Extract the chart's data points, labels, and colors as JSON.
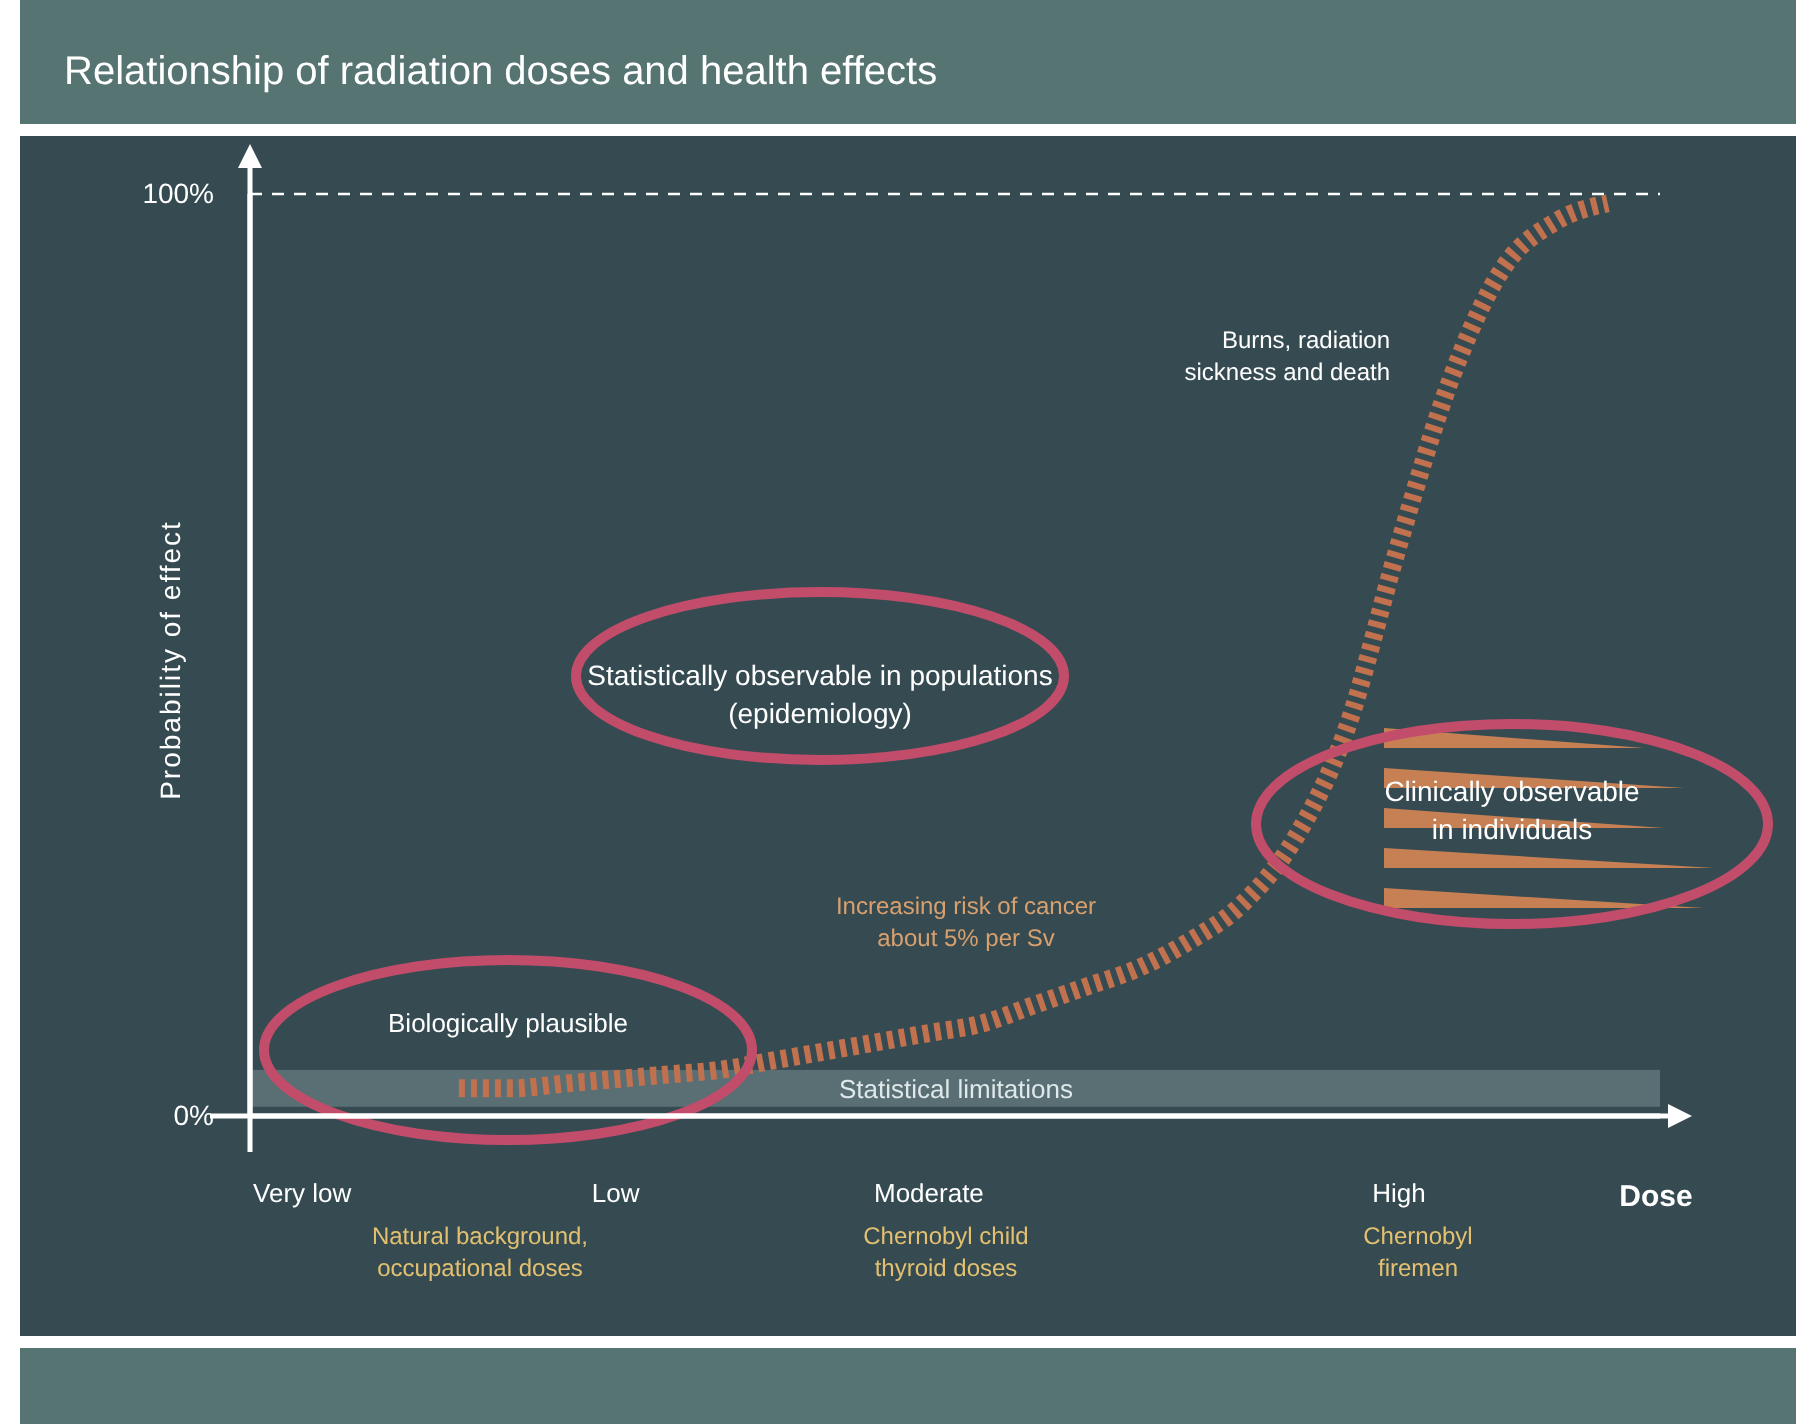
{
  "chart_data": {
    "type": "line",
    "title": "Relationship of radiation doses and health effects",
    "xlabel": "Dose",
    "ylabel": "Probability of effect",
    "categories": [
      null,
      "Very low",
      null,
      null,
      null,
      null,
      null,
      "Low",
      null,
      null,
      null,
      null,
      null,
      "Moderate",
      null,
      null,
      null,
      null,
      null,
      null,
      null,
      null,
      "High",
      null,
      null,
      null,
      null,
      null
    ],
    "series": [
      {
        "color": "#c2714f",
        "values": [
          null,
          null,
          null,
          null,
          3,
          3,
          3.5,
          4,
          4.5,
          5,
          6,
          7,
          8,
          9,
          10,
          12,
          14,
          16,
          19,
          23,
          30,
          42,
          62,
          80,
          92,
          97,
          99,
          null
        ]
      }
    ],
    "ylim": [
      0,
      100
    ],
    "yticks": [
      {
        "value": 0,
        "label": "0%"
      },
      {
        "value": 100,
        "label": "100%"
      }
    ],
    "ref_lines": [
      {
        "axis": "y",
        "value": 100,
        "color": "#ffffff",
        "line_style": "dashed"
      }
    ],
    "bands": [
      {
        "axis": "y",
        "from": 1,
        "to": 5,
        "label": "Statistical limitations",
        "color": "#9fb4b8"
      }
    ],
    "line_style": "dashed",
    "marker": "none",
    "annotations": [
      "Biologically plausible",
      "Statistically observable in populations (epidemiology)",
      "Clinically observable in individuals",
      "Increasing risk of cancer about 5% per Sv",
      "Burns, radiation sickness and death",
      "Natural background, occupational doses",
      "Chernobyl child thyroid doses",
      "Chernobyl firemen"
    ]
  }
}
